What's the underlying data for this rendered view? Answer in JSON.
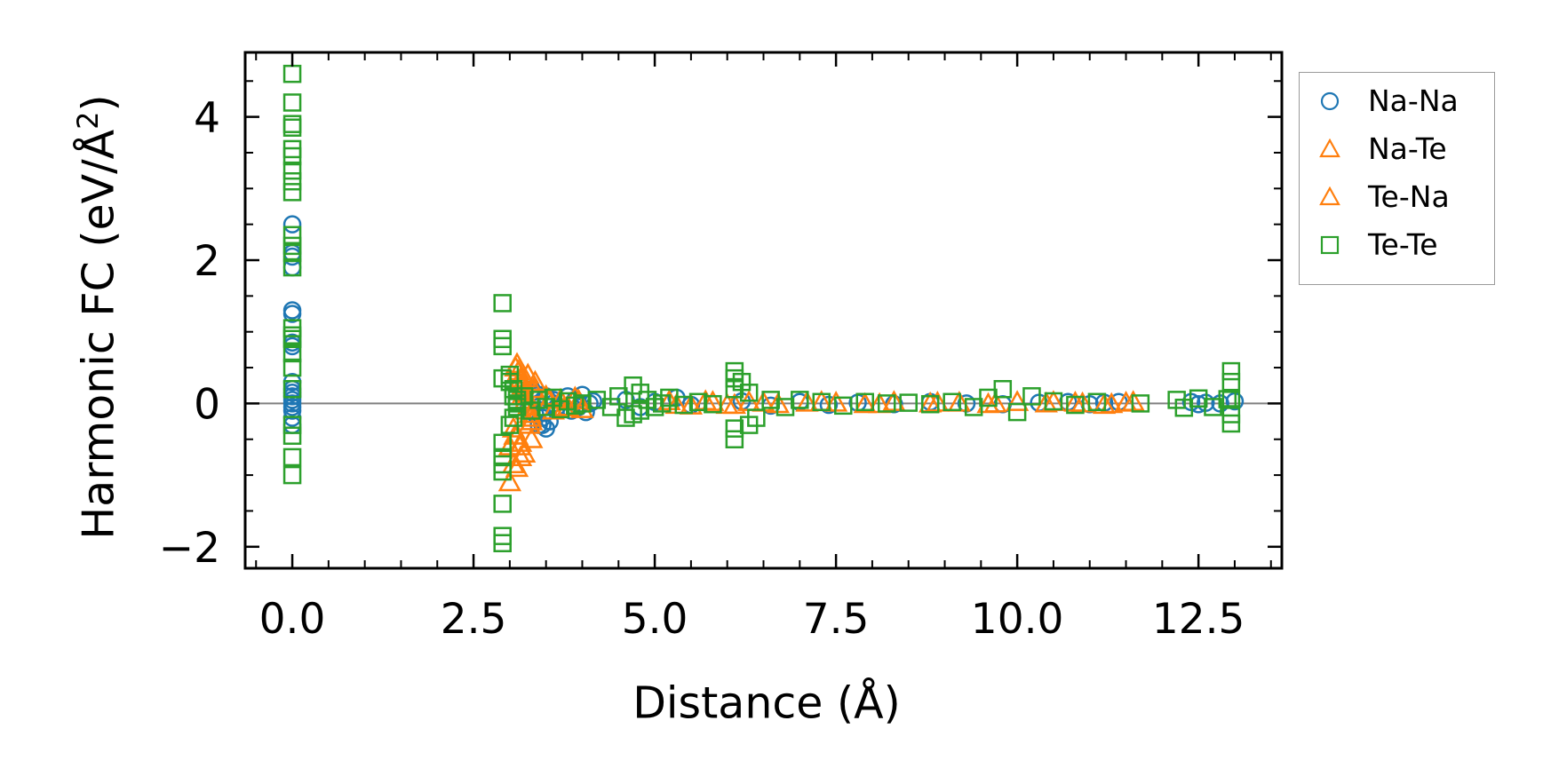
{
  "chart_data": {
    "type": "scatter",
    "title": "",
    "xlabel": "Distance (Å)",
    "ylabel_prefix": "Harmonic FC (eV/Å",
    "ylabel_sup": "2",
    "ylabel_suffix": ")",
    "xlim": [
      -0.65,
      13.65
    ],
    "ylim": [
      -2.3,
      4.9
    ],
    "xticks": [
      0.0,
      2.5,
      5.0,
      7.5,
      10.0,
      12.5
    ],
    "xtick_labels": [
      "0.0",
      "2.5",
      "5.0",
      "7.5",
      "10.0",
      "12.5"
    ],
    "yticks": [
      -2,
      0,
      2,
      4
    ],
    "ytick_labels": [
      "−2",
      "0",
      "2",
      "4"
    ],
    "reference_line_y": 0,
    "legend_position": "outside-right-top",
    "series": [
      {
        "name": "Na-Na",
        "marker": "circle",
        "color": "#1f77b4",
        "x": [
          0,
          0,
          0,
          0,
          0,
          0,
          0,
          0,
          0,
          0,
          0,
          0,
          0,
          0,
          0,
          0,
          0,
          0,
          3.2,
          3.25,
          3.3,
          3.35,
          3.4,
          3.45,
          3.5,
          3.55,
          3.6,
          3.65,
          3.3,
          3.4,
          3.5,
          3.6,
          3.5,
          3.45,
          3.8,
          3.85,
          3.9,
          3.95,
          4.0,
          4.05,
          4.1,
          4.15,
          4.6,
          4.8,
          5.0,
          5.3,
          5.5,
          6.2,
          6.6,
          7.0,
          7.4,
          7.8,
          8.3,
          8.8,
          9.3,
          9.8,
          10.3,
          10.7,
          11.0,
          11.2,
          11.4,
          12.4,
          12.5,
          12.6,
          12.8,
          13.0
        ],
        "y": [
          2.5,
          2.1,
          2.05,
          1.9,
          1.3,
          1.25,
          0.85,
          0.8,
          0.3,
          0.2,
          0.15,
          0.1,
          0.05,
          -0.05,
          -0.1,
          -0.2,
          -0.3,
          0.0,
          0.1,
          -0.1,
          0.15,
          -0.15,
          0.12,
          -0.2,
          0.08,
          -0.25,
          0.05,
          -0.05,
          0.2,
          -0.3,
          -0.35,
          0.0,
          0.1,
          -0.3,
          0.1,
          -0.1,
          0.05,
          -0.05,
          0.12,
          -0.12,
          0.0,
          0.03,
          0.05,
          -0.05,
          0.02,
          0.08,
          -0.02,
          0.03,
          -0.03,
          0.02,
          -0.02,
          0.01,
          -0.01,
          0.02,
          0.0,
          -0.01,
          0.01,
          0.02,
          -0.01,
          0.01,
          0.02,
          0.02,
          -0.01,
          0.01,
          0.0,
          0.03
        ]
      },
      {
        "name": "Na-Te",
        "marker": "triangle",
        "color": "#ff7f0e",
        "x": [
          3.1,
          3.12,
          3.15,
          3.18,
          3.2,
          3.22,
          3.25,
          3.28,
          3.3,
          3.05,
          3.1,
          3.15,
          3.2,
          3.25,
          3.3,
          3.35,
          3.0,
          3.05,
          3.1,
          3.15,
          3.5,
          3.6,
          3.7,
          3.8,
          3.9,
          4.0,
          5.2,
          5.5,
          5.8,
          6.0,
          6.3,
          6.7,
          7.1,
          7.5,
          7.9,
          8.3,
          8.8,
          9.2,
          9.6,
          10.0,
          10.4,
          10.8,
          11.2,
          11.5
        ],
        "y": [
          0.55,
          0.45,
          0.35,
          0.25,
          0.15,
          0.05,
          -0.05,
          -0.15,
          -0.25,
          -0.35,
          -0.45,
          -0.55,
          -0.7,
          0.4,
          -0.5,
          0.3,
          -0.6,
          -0.85,
          -0.9,
          -0.75,
          0.1,
          -0.1,
          0.05,
          -0.05,
          0.08,
          -0.08,
          0.03,
          -0.03,
          0.02,
          -0.02,
          0.02,
          -0.01,
          0.01,
          0.01,
          -0.01,
          0.02,
          0.0,
          0.01,
          -0.01,
          0.02,
          0.0,
          0.01,
          -0.02,
          0.01
        ]
      },
      {
        "name": "Te-Na",
        "marker": "triangle",
        "color": "#ff7f0e",
        "x": [
          3.08,
          3.13,
          3.17,
          3.23,
          3.27,
          3.33,
          3.07,
          3.14,
          3.21,
          3.29,
          3.0,
          3.55,
          3.75,
          3.95,
          5.3,
          5.7,
          6.1,
          6.5,
          7.3,
          8.1,
          8.9,
          9.7,
          10.5,
          10.9,
          11.3,
          11.6
        ],
        "y": [
          0.5,
          0.3,
          0.1,
          -0.1,
          -0.3,
          0.2,
          -0.45,
          -0.6,
          0.35,
          -0.2,
          -1.1,
          0.05,
          -0.06,
          0.04,
          -0.02,
          0.03,
          -0.02,
          0.01,
          0.02,
          -0.01,
          0.01,
          0.0,
          0.02,
          0.0,
          -0.01,
          0.02
        ]
      },
      {
        "name": "Te-Te",
        "marker": "square",
        "color": "#2ca02c",
        "x": [
          0,
          0,
          0,
          0,
          0,
          0,
          0,
          0,
          0,
          0,
          0,
          0,
          0,
          0,
          0,
          0,
          0,
          0,
          0,
          0,
          0,
          0,
          0,
          2.9,
          2.9,
          2.9,
          2.9,
          2.9,
          2.9,
          2.9,
          2.9,
          2.9,
          2.9,
          2.9,
          3.0,
          3.0,
          3.0,
          3.05,
          3.05,
          3.05,
          3.1,
          3.1,
          3.1,
          3.2,
          3.3,
          3.4,
          3.5,
          3.6,
          3.7,
          3.8,
          3.9,
          4.0,
          4.2,
          4.4,
          4.5,
          4.6,
          4.7,
          4.7,
          4.8,
          4.8,
          4.9,
          5.0,
          5.1,
          5.2,
          5.4,
          5.6,
          5.8,
          6.1,
          6.1,
          6.1,
          6.1,
          6.1,
          6.2,
          6.3,
          6.3,
          6.4,
          6.6,
          6.8,
          7.0,
          7.3,
          7.6,
          7.9,
          8.2,
          8.5,
          8.8,
          9.1,
          9.4,
          9.6,
          9.8,
          10.0,
          10.2,
          10.5,
          10.8,
          11.1,
          11.7,
          12.2,
          12.3,
          12.5,
          12.7,
          12.9,
          12.95,
          12.95,
          12.95,
          12.95,
          12.95
        ],
        "y": [
          4.6,
          4.2,
          3.9,
          3.85,
          3.55,
          3.45,
          3.25,
          3.1,
          2.95,
          2.35,
          2.2,
          2.1,
          1.9,
          1.05,
          0.95,
          0.9,
          0.7,
          0.5,
          0.2,
          -0.3,
          -0.45,
          -0.75,
          -1.0,
          1.4,
          0.9,
          0.8,
          -0.75,
          -0.85,
          -0.95,
          -1.4,
          -1.85,
          -1.95,
          0.35,
          -0.55,
          0.4,
          0.3,
          -0.3,
          0.2,
          -0.2,
          0.1,
          0.05,
          -0.05,
          0.0,
          0.1,
          -0.1,
          0.05,
          -0.05,
          0.08,
          -0.08,
          0.03,
          -0.03,
          0.0,
          0.05,
          -0.05,
          0.1,
          -0.2,
          0.25,
          -0.15,
          0.15,
          -0.1,
          0.05,
          -0.05,
          0.0,
          0.08,
          -0.02,
          0.02,
          -0.01,
          0.45,
          0.35,
          0.2,
          -0.35,
          -0.5,
          0.3,
          0.15,
          -0.3,
          -0.2,
          0.05,
          -0.05,
          0.05,
          0.02,
          -0.03,
          0.02,
          0.0,
          0.01,
          -0.01,
          0.02,
          -0.05,
          0.08,
          0.2,
          -0.12,
          0.1,
          0.03,
          -0.02,
          0.02,
          0.0,
          0.05,
          -0.06,
          0.07,
          -0.05,
          0.06,
          0.45,
          0.3,
          0.05,
          -0.15,
          -0.28
        ]
      }
    ]
  }
}
